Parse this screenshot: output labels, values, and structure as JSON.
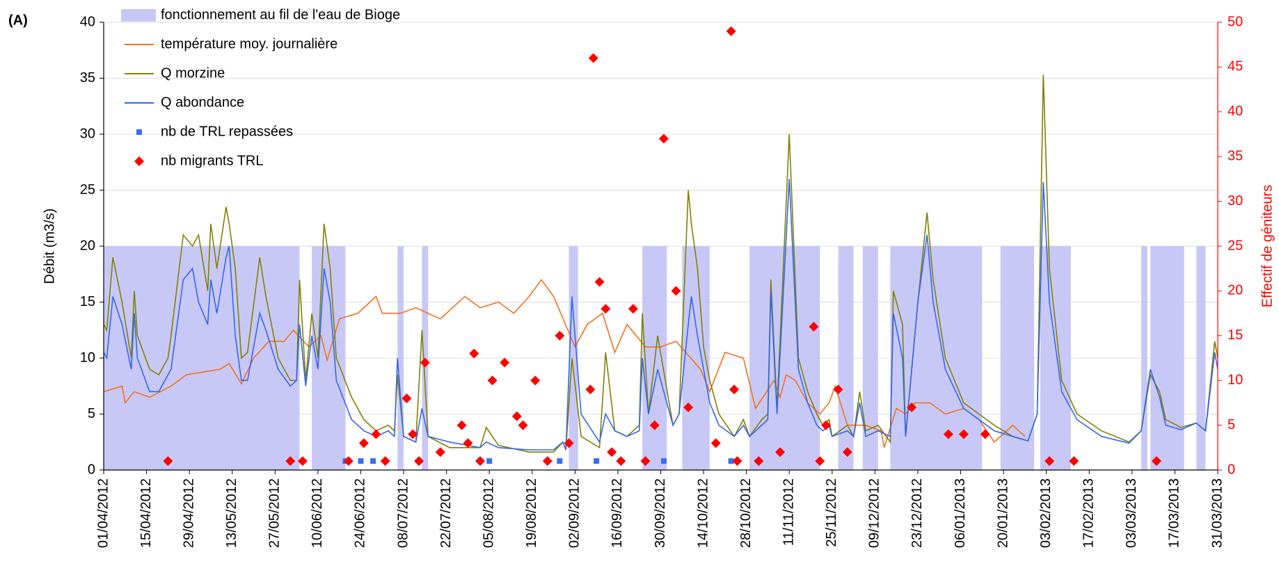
{
  "chart_data": {
    "type": "line",
    "label": "(A)",
    "y_label": "Débit (m3/s)",
    "y2_label": "Effectif de géniteurs",
    "y2_color": "#ff0000",
    "grid": true,
    "legend": "top-left",
    "xlim": [
      "01/04/2012",
      "31/03/2013"
    ],
    "xticks": [
      "01/04/2012",
      "15/04/2012",
      "29/04/2012",
      "13/05/2012",
      "27/05/2012",
      "10/06/2012",
      "24/06/2012",
      "08/07/2012",
      "22/07/2012",
      "05/08/2012",
      "19/08/2012",
      "02/09/2012",
      "16/09/2012",
      "30/09/2012",
      "14/10/2012",
      "28/10/2012",
      "11/11/2012",
      "25/11/2012",
      "09/12/2012",
      "23/12/2012",
      "06/01/2013",
      "20/01/2013",
      "03/02/2013",
      "17/02/2013",
      "03/03/2013",
      "17/03/2013",
      "31/03/2013"
    ],
    "ylim": [
      0,
      40
    ],
    "yticks": [
      0,
      5,
      10,
      15,
      20,
      25,
      30,
      35,
      40
    ],
    "y2lim": [
      0,
      50
    ],
    "y2ticks": [
      0,
      5,
      10,
      15,
      20,
      25,
      30,
      35,
      40,
      45,
      50
    ],
    "series": [
      {
        "name": "fonctionnement au fil de l'eau de Bioge",
        "type": "band",
        "color": "#c8c8f6",
        "value": 20,
        "periods": [
          [
            "01/04/2012",
            "04/06/2012"
          ],
          [
            "08/06/2012",
            "19/06/2012"
          ],
          [
            "06/07/2012",
            "08/07/2012"
          ],
          [
            "14/07/2012",
            "16/07/2012"
          ],
          [
            "31/08/2012",
            "03/09/2012"
          ],
          [
            "24/09/2012",
            "02/10/2012"
          ],
          [
            "07/10/2012",
            "16/10/2012"
          ],
          [
            "29/10/2012",
            "21/11/2012"
          ],
          [
            "27/11/2012",
            "02/12/2012"
          ],
          [
            "05/12/2012",
            "10/12/2012"
          ],
          [
            "14/12/2012",
            "13/01/2013"
          ],
          [
            "19/01/2013",
            "30/01/2013"
          ],
          [
            "01/02/2013",
            "11/02/2013"
          ],
          [
            "06/03/2013",
            "08/03/2013"
          ],
          [
            "09/03/2013",
            "20/03/2013"
          ],
          [
            "24/03/2013",
            "27/03/2013"
          ]
        ]
      },
      {
        "name": "température moy. journalière",
        "type": "line",
        "color": "#f07020",
        "x": [
          "01/04/2012",
          "07/04/2012",
          "08/04/2012",
          "11/04/2012",
          "16/04/2012",
          "23/04/2012",
          "28/04/2012",
          "09/05/2012",
          "12/05/2012",
          "16/05/2012",
          "20/05/2012",
          "25/05/2012",
          "30/05/2012",
          "02/06/2012",
          "07/06/2012",
          "11/06/2012",
          "13/06/2012",
          "17/06/2012",
          "23/06/2012",
          "29/06/2012",
          "01/07/2012",
          "07/07/2012",
          "12/07/2012",
          "20/07/2012",
          "28/07/2012",
          "02/08/2012",
          "08/08/2012",
          "13/08/2012",
          "18/08/2012",
          "22/08/2012",
          "26/08/2012",
          "02/09/2012",
          "06/09/2012",
          "11/09/2012",
          "15/09/2012",
          "19/09/2012",
          "25/09/2012",
          "30/09/2012",
          "05/10/2012",
          "13/10/2012",
          "16/10/2012",
          "21/10/2012",
          "27/10/2012",
          "31/10/2012",
          "06/11/2012",
          "08/11/2012",
          "10/11/2012",
          "13/11/2012",
          "17/11/2012",
          "21/11/2012",
          "24/11/2012",
          "26/11/2012",
          "30/11/2012",
          "06/12/2012",
          "11/12/2012",
          "12/12/2012",
          "16/12/2012",
          "19/12/2012",
          "22/12/2012",
          "27/12/2012",
          "01/01/2013",
          "07/01/2013",
          "12/01/2013",
          "17/01/2013",
          "23/01/2013",
          "27/01/2013"
        ],
        "values": [
          7,
          7.5,
          6,
          7,
          6.5,
          7.5,
          8.5,
          9,
          9.5,
          7.7,
          10,
          11.5,
          11.5,
          12.5,
          11,
          12,
          9.8,
          13.5,
          14,
          15.5,
          14,
          14,
          14.5,
          13.5,
          15.5,
          14.5,
          15,
          14,
          15.5,
          17,
          15.5,
          11,
          13,
          14,
          10.5,
          13,
          11,
          11,
          11.5,
          9,
          7,
          10.5,
          10,
          5.5,
          8,
          6.5,
          8.5,
          8,
          6,
          5,
          6,
          7.5,
          4,
          4,
          3.5,
          2,
          5.5,
          5,
          6,
          6,
          5,
          5.5,
          4.5,
          2.5,
          4,
          3
        ]
      },
      {
        "name": "Q morzine",
        "type": "line",
        "color": "#808000",
        "x": [
          "01/04/2012",
          "02/04/2012",
          "04/04/2012",
          "07/04/2012",
          "10/04/2012",
          "11/04/2012",
          "12/04/2012",
          "16/04/2012",
          "19/04/2012",
          "22/04/2012",
          "23/04/2012",
          "27/04/2012",
          "30/04/2012",
          "02/05/2012",
          "05/05/2012",
          "06/05/2012",
          "08/05/2012",
          "11/05/2012",
          "12/05/2012",
          "14/05/2012",
          "16/05/2012",
          "18/05/2012",
          "22/05/2012",
          "24/05/2012",
          "28/05/2012",
          "01/06/2012",
          "03/06/2012",
          "04/06/2012",
          "06/06/2012",
          "08/06/2012",
          "10/06/2012",
          "12/06/2012",
          "14/06/2012",
          "16/06/2012",
          "21/06/2012",
          "25/06/2012",
          "29/06/2012",
          "03/07/2012",
          "05/07/2012",
          "06/07/2012",
          "08/07/2012",
          "12/07/2012",
          "14/07/2012",
          "16/07/2012",
          "23/07/2012",
          "02/08/2012",
          "04/08/2012",
          "08/08/2012",
          "18/08/2012",
          "26/08/2012",
          "29/08/2012",
          "30/08/2012",
          "01/09/2012",
          "04/09/2012",
          "10/09/2012",
          "12/09/2012",
          "15/09/2012",
          "19/09/2012",
          "23/09/2012",
          "24/09/2012",
          "26/09/2012",
          "29/09/2012",
          "04/10/2012",
          "06/10/2012",
          "09/10/2012",
          "10/10/2012",
          "12/10/2012",
          "14/10/2012",
          "16/10/2012",
          "19/10/2012",
          "24/10/2012",
          "27/10/2012",
          "29/10/2012",
          "02/11/2012",
          "04/11/2012",
          "05/11/2012",
          "07/11/2012",
          "11/11/2012",
          "14/11/2012",
          "17/11/2012",
          "20/11/2012",
          "22/11/2012",
          "24/11/2012",
          "25/11/2012",
          "30/11/2012",
          "02/12/2012",
          "04/12/2012",
          "06/12/2012",
          "10/12/2012",
          "14/12/2012",
          "15/12/2012",
          "18/12/2012",
          "19/12/2012",
          "23/12/2012",
          "26/12/2012",
          "28/12/2012",
          "01/01/2013",
          "07/01/2013",
          "12/01/2013",
          "17/01/2013",
          "23/01/2013",
          "28/01/2013",
          "31/01/2013",
          "02/02/2013",
          "04/02/2013",
          "08/02/2013",
          "13/02/2013",
          "21/02/2013",
          "02/03/2013",
          "06/03/2013",
          "09/03/2013",
          "12/03/2013",
          "14/03/2013",
          "19/03/2013",
          "24/03/2013",
          "27/03/2013",
          "30/03/2013",
          "31/03/2013"
        ],
        "values": [
          13,
          12.5,
          19,
          15,
          10,
          16,
          12,
          9,
          8.5,
          10,
          12,
          21,
          20,
          21,
          16,
          22,
          18,
          23.5,
          22,
          18,
          10,
          10.5,
          19,
          15.5,
          10,
          8,
          8,
          17,
          8,
          14,
          10,
          22,
          18,
          10,
          6.5,
          4.5,
          3.5,
          4,
          3.5,
          8.5,
          3,
          2.5,
          12.5,
          3,
          2,
          2,
          3.8,
          2.2,
          1.6,
          1.6,
          2.5,
          1.8,
          10,
          3,
          2,
          10.5,
          3.5,
          3,
          4,
          14,
          5,
          12,
          4,
          5,
          25,
          22,
          18,
          11,
          8,
          5,
          3,
          4.5,
          3,
          4.5,
          5,
          17,
          5.5,
          30,
          10,
          7,
          5,
          4,
          4.5,
          3,
          4,
          3,
          7,
          3.5,
          4,
          2.5,
          16,
          13,
          3,
          15,
          23,
          17,
          10,
          6,
          5,
          4,
          3,
          2.6,
          5,
          35.3,
          18,
          8,
          5,
          3.5,
          2.5,
          3.5,
          8.5,
          7,
          4.5,
          3.8,
          4.2,
          3.5,
          11.5,
          10
        ]
      },
      {
        "name": "Q abondance",
        "type": "line",
        "color": "#3366ee",
        "x": [
          "01/04/2012",
          "02/04/2012",
          "04/04/2012",
          "07/04/2012",
          "10/04/2012",
          "11/04/2012",
          "12/04/2012",
          "16/04/2012",
          "19/04/2012",
          "22/04/2012",
          "23/04/2012",
          "27/04/2012",
          "30/04/2012",
          "02/05/2012",
          "05/05/2012",
          "06/05/2012",
          "08/05/2012",
          "11/05/2012",
          "12/05/2012",
          "14/05/2012",
          "16/05/2012",
          "18/05/2012",
          "22/05/2012",
          "24/05/2012",
          "28/05/2012",
          "01/06/2012",
          "03/06/2012",
          "04/06/2012",
          "06/06/2012",
          "08/06/2012",
          "10/06/2012",
          "12/06/2012",
          "14/06/2012",
          "16/06/2012",
          "21/06/2012",
          "25/06/2012",
          "29/06/2012",
          "03/07/2012",
          "05/07/2012",
          "06/07/2012",
          "08/07/2012",
          "12/07/2012",
          "14/07/2012",
          "16/07/2012",
          "23/07/2012",
          "02/08/2012",
          "04/08/2012",
          "08/08/2012",
          "18/08/2012",
          "26/08/2012",
          "29/08/2012",
          "30/08/2012",
          "01/09/2012",
          "04/09/2012",
          "10/09/2012",
          "12/09/2012",
          "15/09/2012",
          "19/09/2012",
          "23/09/2012",
          "24/09/2012",
          "26/09/2012",
          "29/09/2012",
          "04/10/2012",
          "06/10/2012",
          "09/10/2012",
          "10/10/2012",
          "12/10/2012",
          "14/10/2012",
          "16/10/2012",
          "19/10/2012",
          "24/10/2012",
          "27/10/2012",
          "29/10/2012",
          "02/11/2012",
          "04/11/2012",
          "05/11/2012",
          "07/11/2012",
          "11/11/2012",
          "14/11/2012",
          "17/11/2012",
          "20/11/2012",
          "22/11/2012",
          "24/11/2012",
          "25/11/2012",
          "30/11/2012",
          "02/12/2012",
          "04/12/2012",
          "06/12/2012",
          "10/12/2012",
          "14/12/2012",
          "15/12/2012",
          "18/12/2012",
          "19/12/2012",
          "23/12/2012",
          "26/12/2012",
          "28/12/2012",
          "01/01/2013",
          "07/01/2013",
          "12/01/2013",
          "17/01/2013",
          "23/01/2013",
          "28/01/2013",
          "31/01/2013",
          "02/02/2013",
          "04/02/2013",
          "08/02/2013",
          "13/02/2013",
          "21/02/2013",
          "02/03/2013",
          "06/03/2013",
          "09/03/2013",
          "12/03/2013",
          "14/03/2013",
          "19/03/2013",
          "24/03/2013",
          "27/03/2013",
          "30/03/2013",
          "31/03/2013"
        ],
        "values": [
          10.5,
          10,
          15.5,
          13,
          9,
          14,
          10,
          7,
          7,
          8.5,
          9,
          17,
          18,
          15,
          13,
          17,
          14,
          19,
          20,
          12,
          8,
          8,
          14,
          12.5,
          9,
          7.5,
          8,
          13,
          7.5,
          12,
          9,
          18,
          15,
          8,
          4.5,
          3.5,
          3,
          3.5,
          3,
          10,
          3,
          2.5,
          5.5,
          3,
          2.5,
          2,
          2.5,
          2,
          1.8,
          1.8,
          2.5,
          1.8,
          15.5,
          5,
          2.5,
          5,
          3.5,
          3,
          3.5,
          10,
          5,
          9,
          4,
          5,
          13,
          15.5,
          12,
          9,
          6,
          4,
          3,
          4,
          3,
          4,
          4.5,
          16,
          5,
          26,
          9,
          6,
          4,
          3.5,
          4,
          3,
          3.5,
          3,
          6,
          3,
          3.5,
          3,
          14,
          10,
          3,
          15,
          21,
          15,
          9,
          5.5,
          4.5,
          3.5,
          3,
          2.6,
          5,
          25.7,
          15,
          7,
          4.5,
          3,
          2.4,
          3.5,
          9,
          6.5,
          4,
          3.6,
          4.2,
          3.5,
          10.5,
          9
        ]
      },
      {
        "name": "nb de TRL repassées",
        "type": "scatter",
        "marker": "square",
        "axis": "y2",
        "color": "#3a6ef0",
        "x": [
          "19/06/2012",
          "24/06/2012",
          "28/06/2012",
          "05/08/2012",
          "28/08/2012",
          "09/09/2012",
          "01/10/2012",
          "23/10/2012",
          "08/11/2012"
        ],
        "values": [
          1,
          1,
          1,
          1,
          1,
          1,
          1,
          1,
          2
        ]
      },
      {
        "name": "nb migrants TRL",
        "type": "scatter",
        "marker": "diamond",
        "axis": "y2",
        "color": "#ff0000",
        "x": [
          "22/04/2012",
          "01/06/2012",
          "05/06/2012",
          "20/06/2012",
          "25/06/2012",
          "29/06/2012",
          "02/07/2012",
          "09/07/2012",
          "11/07/2012",
          "13/07/2012",
          "15/07/2012",
          "20/07/2012",
          "27/07/2012",
          "29/07/2012",
          "31/07/2012",
          "02/08/2012",
          "06/08/2012",
          "10/08/2012",
          "14/08/2012",
          "16/08/2012",
          "20/08/2012",
          "24/08/2012",
          "28/08/2012",
          "31/08/2012",
          "07/09/2012",
          "08/09/2012",
          "10/09/2012",
          "12/09/2012",
          "14/09/2012",
          "17/09/2012",
          "21/09/2012",
          "25/09/2012",
          "28/09/2012",
          "01/10/2012",
          "05/10/2012",
          "09/10/2012",
          "18/10/2012",
          "23/10/2012",
          "24/10/2012",
          "25/10/2012",
          "01/11/2012",
          "08/11/2012",
          "19/11/2012",
          "21/11/2012",
          "23/11/2012",
          "27/11/2012",
          "30/11/2012",
          "21/12/2012",
          "02/01/2013",
          "07/01/2013",
          "14/01/2013",
          "04/02/2013",
          "12/02/2013",
          "11/03/2013"
        ],
        "values": [
          1,
          1,
          1,
          1,
          3,
          4,
          1,
          8,
          4,
          1,
          12,
          2,
          5,
          3,
          13,
          1,
          10,
          12,
          6,
          5,
          10,
          1,
          15,
          3,
          9,
          46,
          21,
          18,
          2,
          1,
          18,
          1,
          5,
          37,
          20,
          7,
          3,
          49,
          9,
          1,
          1,
          2,
          16,
          1,
          5,
          9,
          2,
          7,
          4,
          4,
          4,
          1,
          1,
          1
        ]
      }
    ]
  }
}
